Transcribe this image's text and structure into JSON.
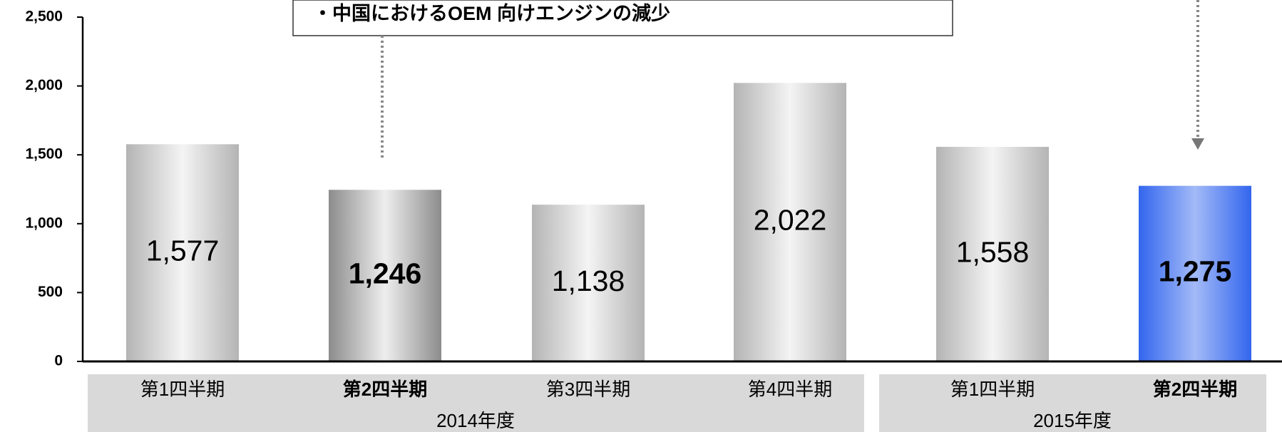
{
  "chart_data": {
    "type": "bar",
    "annotation": "・中国におけるOEM 向けエンジンの減少",
    "categories": [
      "第1四半期",
      "第2四半期",
      "第3四半期",
      "第4四半期",
      "第1四半期",
      "第2四半期"
    ],
    "groups": [
      "2014年度",
      "2015年度"
    ],
    "values": [
      1577,
      1246,
      1138,
      2022,
      1558,
      1275
    ],
    "value_labels": [
      "1,577",
      "1,246",
      "1,138",
      "2,022",
      "1,558",
      "1,275"
    ],
    "colors": [
      "#b4b4b4",
      "#8c8c8c",
      "#b4b4b4",
      "#b4b4b4",
      "#b4b4b4",
      "#3366ee"
    ],
    "ylim": [
      0,
      2500
    ],
    "yticks": [
      0,
      {
        "value": 500,
        "label": "500"
      },
      {
        "value": 1000,
        "label": "1,000"
      },
      {
        "value": 1500,
        "label": "1,500"
      },
      {
        "value": 2000,
        "label": "2,000"
      },
      {
        "value": 2500,
        "label": "2,500"
      }
    ]
  }
}
